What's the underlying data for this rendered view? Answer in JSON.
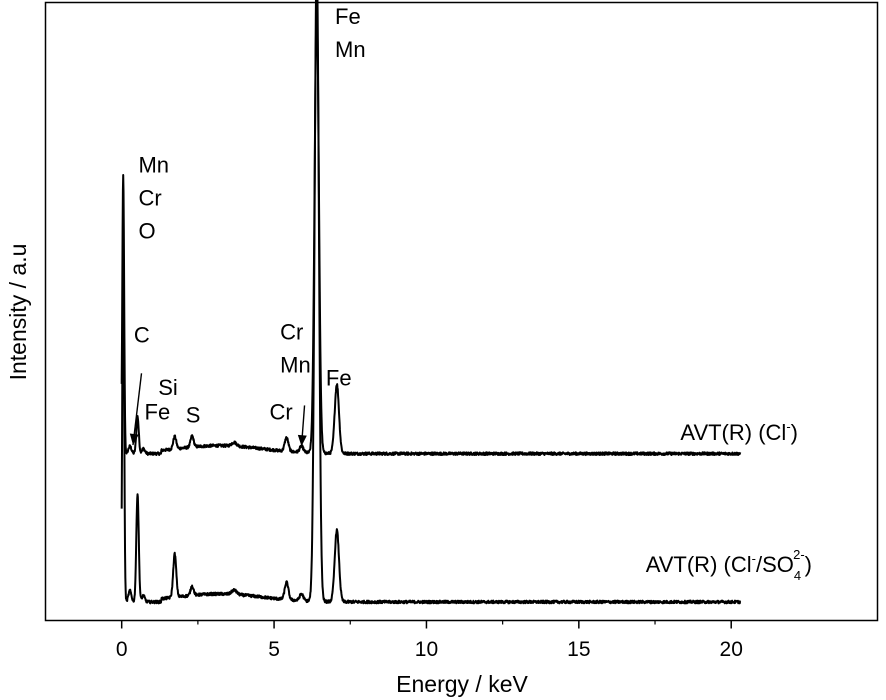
{
  "chart_data": {
    "type": "line",
    "title": "",
    "xlabel": "Energy / keV",
    "ylabel": "Intensity / a.u",
    "xlim": [
      -2.5,
      24.8
    ],
    "ylim": [
      0,
      100
    ],
    "xticks": [
      0,
      5,
      10,
      15,
      20
    ],
    "xtick_labels": [
      "0",
      "5",
      "10",
      "15",
      "20"
    ],
    "y_ticks_visible": false,
    "grid": false,
    "legend": "none",
    "series": [
      {
        "name": "AVT(R) (Cl⁻)",
        "label": {
          "main": "AVT(R) (Cl",
          "sup": "-",
          "close": ")"
        },
        "baseline": 27,
        "end_x": 20.3,
        "peaks": [
          {
            "x": 0.05,
            "h": 45,
            "w": 0.03
          },
          {
            "x": 0.27,
            "h": 1.2,
            "w": 0.05
          },
          {
            "x": 0.52,
            "h": 6.0,
            "w": 0.04
          },
          {
            "x": 0.71,
            "h": 0.8,
            "w": 0.05
          },
          {
            "x": 1.74,
            "h": 2.0,
            "w": 0.05
          },
          {
            "x": 2.31,
            "h": 1.8,
            "w": 0.05
          },
          {
            "x": 3.69,
            "h": 0.6,
            "w": 0.08
          },
          {
            "x": 5.41,
            "h": 2.2,
            "w": 0.06
          },
          {
            "x": 5.9,
            "h": 1.0,
            "w": 0.06
          },
          {
            "x": 6.4,
            "h": 72,
            "w": 0.07
          },
          {
            "x": 7.06,
            "h": 11.2,
            "w": 0.07
          }
        ]
      },
      {
        "name": "AVT(R) (Cl⁻/SO₄²⁻)",
        "label": {
          "main": "AVT(R) (Cl",
          "sup": "-",
          "mid": "/SO",
          "sub": "4",
          "sup2": "2-",
          "close": ")"
        },
        "baseline": 3,
        "end_x": 20.3,
        "peaks": [
          {
            "x": 0.05,
            "h": 60,
            "w": 0.03
          },
          {
            "x": 0.27,
            "h": 1.8,
            "w": 0.05
          },
          {
            "x": 0.52,
            "h": 17.5,
            "w": 0.04
          },
          {
            "x": 0.71,
            "h": 1.0,
            "w": 0.05
          },
          {
            "x": 1.74,
            "h": 7.0,
            "w": 0.05
          },
          {
            "x": 2.31,
            "h": 1.5,
            "w": 0.05
          },
          {
            "x": 3.69,
            "h": 0.7,
            "w": 0.08
          },
          {
            "x": 5.41,
            "h": 2.8,
            "w": 0.06
          },
          {
            "x": 5.9,
            "h": 1.1,
            "w": 0.06
          },
          {
            "x": 6.4,
            "h": 104,
            "w": 0.07
          },
          {
            "x": 7.06,
            "h": 11.6,
            "w": 0.07
          }
        ]
      }
    ],
    "annotations": [
      {
        "lines": [
          "Fe",
          "Mn"
        ],
        "x": 7.0,
        "y": 96.5
      },
      {
        "lines": [
          "Mn",
          "Cr",
          "O"
        ],
        "x": 0.55,
        "y": 72.5
      },
      {
        "lines": [
          "C"
        ],
        "x": 0.4,
        "y": 45.0
      },
      {
        "lines": [
          "Si"
        ],
        "x": 1.2,
        "y": 36.5
      },
      {
        "lines": [
          "Fe"
        ],
        "x": 0.75,
        "y": 32.5
      },
      {
        "lines": [
          "S"
        ],
        "x": 2.1,
        "y": 32.0
      },
      {
        "lines": [
          "Cr",
          "Mn"
        ],
        "x": 5.2,
        "y": 45.5
      },
      {
        "lines": [
          "Cr"
        ],
        "x": 4.85,
        "y": 32.5
      },
      {
        "lines": [
          "Fe"
        ],
        "x": 6.7,
        "y": 38.0
      }
    ],
    "arrows": [
      {
        "from": [
          0.65,
          40.0
        ],
        "to": [
          0.37,
          28.4
        ]
      },
      {
        "from": [
          6.0,
          34.8
        ],
        "to": [
          5.9,
          28.2
        ]
      }
    ]
  }
}
